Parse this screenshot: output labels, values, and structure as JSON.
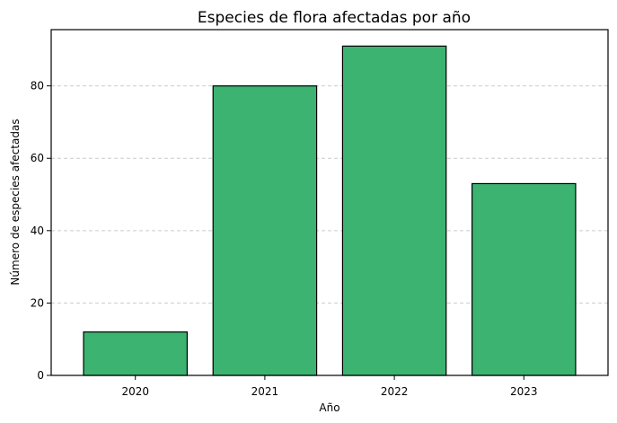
{
  "chart_data": {
    "type": "bar",
    "title": "Especies de flora afectadas por año",
    "xlabel": "Año",
    "ylabel": "Número de especies afectadas",
    "categories": [
      "2020",
      "2021",
      "2022",
      "2023"
    ],
    "values": [
      12,
      80,
      91,
      53
    ],
    "ylim": [
      0,
      95.55
    ],
    "yticks": [
      0,
      20,
      40,
      60,
      80
    ],
    "grid": true,
    "grid_axis": "y",
    "bar_color": "#3CB371",
    "edge_color": "#000000"
  }
}
